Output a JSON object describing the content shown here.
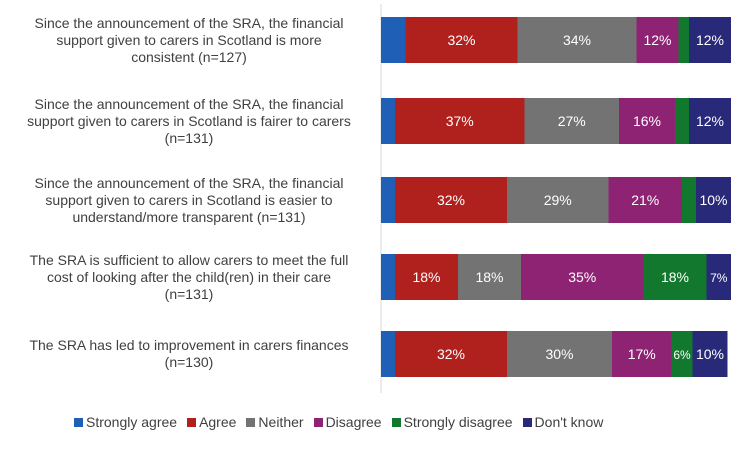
{
  "chart_data": {
    "type": "bar",
    "orientation": "horizontal",
    "stacked": true,
    "percent": true,
    "categories": [
      "Since the announcement of the SRA, the financial support given to carers in Scotland is more consistent (n=127)",
      "Since the announcement of the SRA, the financial support given to carers in Scotland is fairer to carers (n=131)",
      "Since the announcement of the SRA, the financial support given to carers in Scotland is easier to understand/more transparent (n=131)",
      "The SRA is sufficient to allow carers to meet the full cost of looking after the child(ren) in their care (n=131)",
      "The SRA has led to improvement in carers finances (n=130)"
    ],
    "category_lines": [
      [
        "Since the announcement of the SRA, the financial",
        "support given to carers in Scotland is more",
        "consistent (n=127)"
      ],
      [
        "Since the announcement of the SRA, the financial",
        "support given to carers in Scotland is fairer to carers",
        "(n=131)"
      ],
      [
        "Since the announcement of the SRA, the financial",
        "support given to carers in Scotland is easier to",
        "understand/more transparent (n=131)"
      ],
      [
        "The SRA is sufficient to allow carers to meet the full",
        "cost of looking after the child(ren) in their care",
        "(n=131)"
      ],
      [
        "The SRA has led to improvement in carers finances",
        "(n=130)"
      ]
    ],
    "series": [
      {
        "name": "Strongly agree",
        "color": "#1f5fb5",
        "values": [
          7,
          4,
          4,
          4,
          4
        ]
      },
      {
        "name": "Agree",
        "color": "#b0201c",
        "values": [
          32,
          37,
          32,
          18,
          32
        ]
      },
      {
        "name": "Neither",
        "color": "#737373",
        "values": [
          34,
          27,
          29,
          18,
          30
        ]
      },
      {
        "name": "Disagree",
        "color": "#8f2373",
        "values": [
          12,
          16,
          21,
          35,
          17
        ]
      },
      {
        "name": "Strongly disagree",
        "color": "#12782e",
        "values": [
          3,
          4,
          4,
          18,
          6
        ]
      },
      {
        "name": "Don't know",
        "color": "#29297a",
        "values": [
          12,
          12,
          10,
          7,
          10
        ]
      }
    ],
    "data_labels": [
      [
        "",
        "32%",
        "34%",
        "12%",
        "",
        "12%"
      ],
      [
        "",
        "37%",
        "27%",
        "16%",
        "",
        "12%"
      ],
      [
        "",
        "32%",
        "29%",
        "21%",
        "",
        "10%"
      ],
      [
        "",
        "18%",
        "18%",
        "35%",
        "18%",
        "7%"
      ],
      [
        "",
        "32%",
        "30%",
        "17%",
        "6%",
        "10%"
      ]
    ],
    "xlim": [
      0,
      100
    ],
    "grid": false,
    "legend_position": "bottom"
  }
}
